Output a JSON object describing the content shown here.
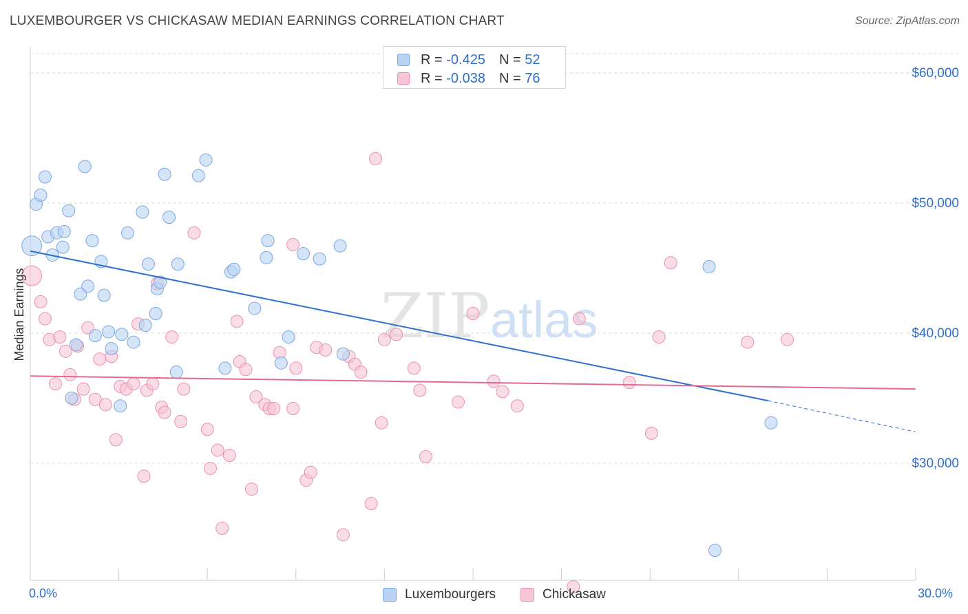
{
  "title": "LUXEMBOURGER VS CHICKASAW MEDIAN EARNINGS CORRELATION CHART",
  "source": "Source: ZipAtlas.com",
  "watermark": {
    "zip": "ZIP",
    "atlas": "atlas"
  },
  "legend_top": {
    "rows": [
      {
        "r_label": "R =",
        "r_value": "-0.425",
        "n_label": "N =",
        "n_value": "52"
      },
      {
        "r_label": "R =",
        "r_value": "-0.038",
        "n_label": "N =",
        "n_value": "76"
      }
    ]
  },
  "legend_bottom": [
    "Luxembourgers",
    "Chickasaw"
  ],
  "x_tick_labels": {
    "left": "0.0%",
    "right": "30.0%"
  },
  "colors": {
    "blue_fill": "#b9d3f3",
    "blue_stroke": "#7aa6e0",
    "blue_line": "#2d6fcc",
    "pink_fill": "#f7c5d5",
    "pink_stroke": "#e890ad",
    "pink_line": "#e06a92",
    "grid": "#dedede",
    "axis_text": "#2d6fcc"
  },
  "chart_data": {
    "type": "scatter",
    "title": "LUXEMBOURGER VS CHICKASAW MEDIAN EARNINGS CORRELATION CHART",
    "xlabel": "",
    "ylabel": "Median Earnings",
    "xlim": [
      0,
      30
    ],
    "ylim": [
      21000,
      62000
    ],
    "y_ticks": [
      {
        "value": 30000,
        "label": "$30,000"
      },
      {
        "value": 40000,
        "label": "$40,000"
      },
      {
        "value": 50000,
        "label": "$50,000"
      },
      {
        "value": 60000,
        "label": "$60,000"
      }
    ],
    "x_ticks": [
      0,
      3,
      6,
      9,
      12,
      15,
      18,
      21,
      24,
      27,
      30
    ],
    "grid": true,
    "legend_position": "top-center",
    "series": [
      {
        "name": "Luxembourgers",
        "color": "#2d6fcc",
        "trend": {
          "x": [
            0,
            25.0
          ],
          "y": [
            46300,
            34800
          ],
          "dashed_to": [
            30.0,
            32400
          ]
        },
        "points": [
          [
            0.05,
            46700,
            1.6
          ],
          [
            0.2,
            49900,
            1
          ],
          [
            0.35,
            50600,
            1
          ],
          [
            0.5,
            52000,
            1
          ],
          [
            0.6,
            47400,
            1
          ],
          [
            0.75,
            46000,
            1
          ],
          [
            0.9,
            47700,
            1
          ],
          [
            1.1,
            46600,
            1
          ],
          [
            1.15,
            47800,
            1
          ],
          [
            1.3,
            49400,
            1
          ],
          [
            1.4,
            35000,
            1
          ],
          [
            1.55,
            39100,
            1
          ],
          [
            1.7,
            43000,
            1
          ],
          [
            1.85,
            52800,
            1
          ],
          [
            1.95,
            43600,
            1
          ],
          [
            2.1,
            47100,
            1
          ],
          [
            2.2,
            39800,
            1
          ],
          [
            2.4,
            45500,
            1
          ],
          [
            2.5,
            42900,
            1
          ],
          [
            2.65,
            40100,
            1
          ],
          [
            2.75,
            38800,
            1
          ],
          [
            3.05,
            34400,
            1
          ],
          [
            3.1,
            39900,
            1
          ],
          [
            3.3,
            47700,
            1
          ],
          [
            3.5,
            39300,
            1
          ],
          [
            3.8,
            49300,
            1
          ],
          [
            3.9,
            40600,
            1
          ],
          [
            4.0,
            45300,
            1
          ],
          [
            4.25,
            41500,
            1
          ],
          [
            4.3,
            43400,
            1
          ],
          [
            4.4,
            43900,
            1
          ],
          [
            4.55,
            52200,
            1
          ],
          [
            4.7,
            48900,
            1
          ],
          [
            4.95,
            37000,
            1
          ],
          [
            5.0,
            45300,
            1
          ],
          [
            5.7,
            52100,
            1
          ],
          [
            5.95,
            53300,
            1
          ],
          [
            6.6,
            37300,
            1
          ],
          [
            6.8,
            44700,
            1
          ],
          [
            6.9,
            44900,
            1
          ],
          [
            7.6,
            41900,
            1
          ],
          [
            8.0,
            45800,
            1
          ],
          [
            8.05,
            47100,
            1
          ],
          [
            8.5,
            37700,
            1
          ],
          [
            8.75,
            39700,
            1
          ],
          [
            9.25,
            46100,
            1
          ],
          [
            9.8,
            45700,
            1
          ],
          [
            10.5,
            46700,
            1
          ],
          [
            10.6,
            38400,
            1
          ],
          [
            23.2,
            23300,
            1
          ],
          [
            23.0,
            45100,
            1
          ],
          [
            25.1,
            33100,
            1
          ]
        ]
      },
      {
        "name": "Chickasaw",
        "color": "#e06a92",
        "trend": {
          "x": [
            0,
            30.0
          ],
          "y": [
            36700,
            35700
          ]
        },
        "points": [
          [
            0.05,
            44400,
            1.6
          ],
          [
            0.35,
            42400,
            1
          ],
          [
            0.5,
            41100,
            1
          ],
          [
            0.65,
            39500,
            1
          ],
          [
            0.85,
            36100,
            1
          ],
          [
            1.0,
            39700,
            1
          ],
          [
            1.2,
            38600,
            1
          ],
          [
            1.35,
            36800,
            1
          ],
          [
            1.5,
            34900,
            1
          ],
          [
            1.6,
            39000,
            1
          ],
          [
            1.8,
            35700,
            1
          ],
          [
            1.95,
            40400,
            1
          ],
          [
            2.2,
            34900,
            1
          ],
          [
            2.35,
            38000,
            1
          ],
          [
            2.55,
            34500,
            1
          ],
          [
            2.75,
            38200,
            1
          ],
          [
            2.9,
            31800,
            1
          ],
          [
            3.05,
            35900,
            1
          ],
          [
            3.25,
            35700,
            1
          ],
          [
            3.5,
            36100,
            1
          ],
          [
            3.65,
            40700,
            1
          ],
          [
            3.85,
            29000,
            1
          ],
          [
            3.95,
            35600,
            1
          ],
          [
            4.15,
            36100,
            1
          ],
          [
            4.3,
            43800,
            1
          ],
          [
            4.45,
            34300,
            1
          ],
          [
            4.55,
            33900,
            1
          ],
          [
            4.8,
            39700,
            1
          ],
          [
            5.1,
            33200,
            1
          ],
          [
            5.2,
            35700,
            1
          ],
          [
            5.55,
            47700,
            1
          ],
          [
            6.0,
            32600,
            1
          ],
          [
            6.1,
            29600,
            1
          ],
          [
            6.35,
            31000,
            1
          ],
          [
            6.5,
            25000,
            1
          ],
          [
            6.75,
            30600,
            1
          ],
          [
            7.0,
            40900,
            1
          ],
          [
            7.1,
            37800,
            1
          ],
          [
            7.3,
            37200,
            1
          ],
          [
            7.5,
            28000,
            1
          ],
          [
            7.65,
            35100,
            1
          ],
          [
            7.95,
            34500,
            1
          ],
          [
            8.1,
            34200,
            1
          ],
          [
            8.25,
            34200,
            1
          ],
          [
            8.45,
            38500,
            1
          ],
          [
            8.9,
            34200,
            1
          ],
          [
            9.0,
            37300,
            1
          ],
          [
            9.35,
            28700,
            1
          ],
          [
            9.5,
            29300,
            1
          ],
          [
            9.7,
            38900,
            1
          ],
          [
            10.0,
            38700,
            1
          ],
          [
            10.6,
            24500,
            1
          ],
          [
            10.8,
            38200,
            1
          ],
          [
            11.0,
            37600,
            1
          ],
          [
            11.2,
            37000,
            1
          ],
          [
            11.55,
            26900,
            1
          ],
          [
            11.7,
            53400,
            1
          ],
          [
            11.9,
            33100,
            1
          ],
          [
            12.0,
            39500,
            1
          ],
          [
            12.4,
            39900,
            1
          ],
          [
            13.0,
            37300,
            1
          ],
          [
            13.2,
            35600,
            1
          ],
          [
            13.4,
            30500,
            1
          ],
          [
            14.5,
            34700,
            1
          ],
          [
            15.0,
            41500,
            1
          ],
          [
            15.7,
            36300,
            1
          ],
          [
            16.0,
            35500,
            1
          ],
          [
            16.5,
            34400,
            1
          ],
          [
            8.9,
            46800,
            1
          ],
          [
            18.4,
            20500,
            1
          ],
          [
            18.6,
            41100,
            1
          ],
          [
            20.3,
            36200,
            1
          ],
          [
            21.05,
            32300,
            1
          ],
          [
            21.3,
            39700,
            1
          ],
          [
            21.7,
            45400,
            1
          ],
          [
            24.3,
            39300,
            1
          ],
          [
            25.65,
            39500,
            1
          ]
        ]
      }
    ]
  }
}
